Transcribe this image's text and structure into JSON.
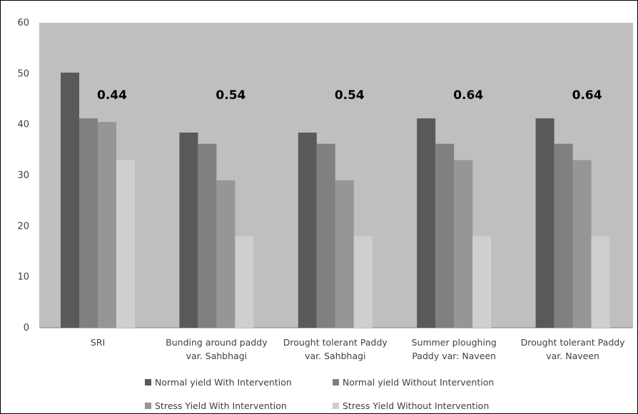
{
  "chart_data": {
    "type": "bar",
    "title": "",
    "xlabel": "",
    "ylabel": "",
    "ylim": [
      0,
      60
    ],
    "yticks": [
      0,
      10,
      20,
      30,
      40,
      50,
      60
    ],
    "grid": false,
    "legend_position": "bottom",
    "plot_background": "#bfbfbf",
    "categories": [
      [
        "SRI"
      ],
      [
        "Bunding around paddy",
        "var. Sahbhagi"
      ],
      [
        "Drought tolerant Paddy",
        "var. Sahbhagi"
      ],
      [
        "Summer ploughing",
        "Paddy var: Naveen"
      ],
      [
        "Drought tolerant Paddy",
        "var. Naveen"
      ]
    ],
    "series": [
      {
        "name": "Normal yield With Intervention",
        "color": "#595959",
        "values": [
          50.2,
          38.4,
          38.4,
          41.2,
          41.2
        ]
      },
      {
        "name": "Normal yield Without Intervention",
        "color": "#808080",
        "values": [
          41.2,
          36.2,
          36.2,
          36.2,
          36.2
        ]
      },
      {
        "name": "Stress Yield With Intervention",
        "color": "#969696",
        "values": [
          40.5,
          29.0,
          29.0,
          33.0,
          33.0
        ]
      },
      {
        "name": "Stress Yield Without Intervention",
        "color": "#cfcfcf",
        "values": [
          33.0,
          18.0,
          18.0,
          18.0,
          18.0
        ]
      }
    ],
    "annotations": [
      "0.44",
      "0.54",
      "0.54",
      "0.64",
      "0.64"
    ]
  }
}
